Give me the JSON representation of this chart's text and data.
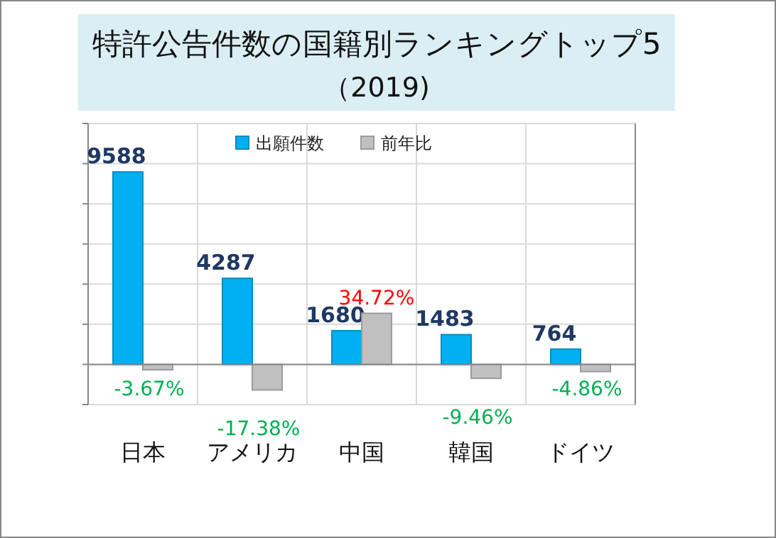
{
  "chart_data": {
    "type": "bar",
    "title": "特許公告件数の国籍別ランキングトップ5",
    "subtitle": "（2019)",
    "categories": [
      "日本",
      "アメリカ",
      "中国",
      "韓国",
      "ドイツ"
    ],
    "series": [
      {
        "name": "出願件数",
        "color": "#00b0f0",
        "values": [
          9588,
          4287,
          1680,
          1483,
          764
        ]
      },
      {
        "name": "前年比",
        "color": "#c0c0c0",
        "axis": "y2",
        "values": [
          -3.67,
          -17.38,
          34.72,
          -9.46,
          -4.86
        ],
        "value_labels": [
          "-3.67%",
          "-17.38%",
          "34.72%",
          "-9.46%",
          "-4.86%"
        ]
      }
    ],
    "ylim": [
      -2000,
      12000
    ],
    "yticks": [
      {
        "value": -2000,
        "label": null
      },
      {
        "value": 0,
        "label": null
      },
      {
        "value": 2000,
        "label": null
      },
      {
        "value": 4000,
        "label": null
      },
      {
        "value": 6000,
        "label": null
      },
      {
        "value": 8000,
        "label": null
      },
      {
        "value": 10000,
        "label": null
      },
      {
        "value": 12000,
        "label": null
      }
    ],
    "data_labels": true,
    "tick_labels": "x",
    "grid": true,
    "legend": "top"
  }
}
